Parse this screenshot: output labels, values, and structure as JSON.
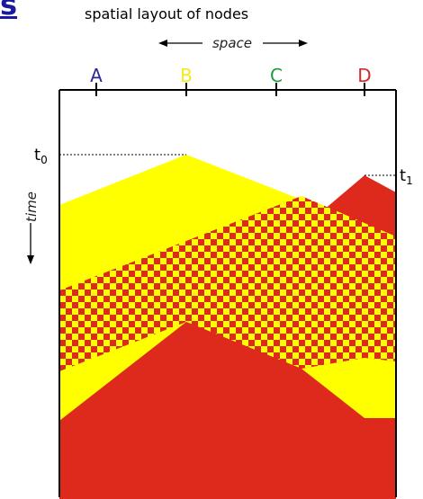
{
  "slide": {
    "cut_title_fragment": "s",
    "subtitle": "spatial layout of nodes"
  },
  "diagram": {
    "space_label": "space",
    "time_label": "time",
    "nodes": [
      {
        "label": "A",
        "color": "#2a2a8c"
      },
      {
        "label": "B",
        "color": "#f2ec1c"
      },
      {
        "label": "C",
        "color": "#1e9a3c"
      },
      {
        "label": "D",
        "color": "#d8282a"
      }
    ],
    "time_marks": [
      {
        "label": "t",
        "subscript": "0"
      },
      {
        "label": "t",
        "subscript": "1"
      }
    ],
    "colors": {
      "signal_from_b": "#ffff00",
      "signal_from_d": "#dd2a1c",
      "frame": "#000000"
    }
  }
}
